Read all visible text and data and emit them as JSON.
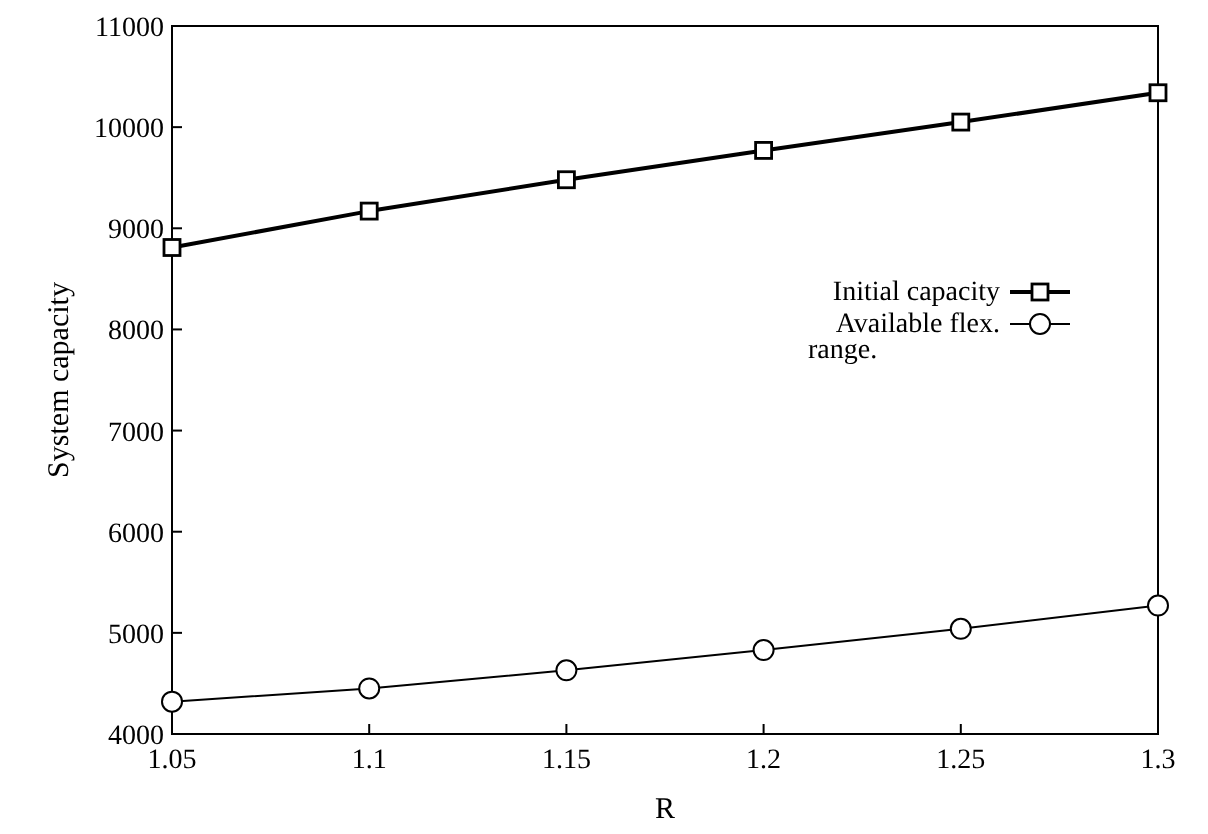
{
  "chart_data": {
    "type": "line",
    "xlabel": "R",
    "ylabel": "System capacity",
    "x": [
      1.05,
      1.1,
      1.15,
      1.2,
      1.25,
      1.3
    ],
    "xlim": [
      1.05,
      1.3
    ],
    "xticks": [
      1.05,
      1.1,
      1.15,
      1.2,
      1.25,
      1.3
    ],
    "ylim": [
      4000,
      11000
    ],
    "yticks": [
      4000,
      5000,
      6000,
      7000,
      8000,
      9000,
      10000,
      11000
    ],
    "grid": false,
    "legend": "right",
    "series": [
      {
        "name": "Initial capacity",
        "color": "#000000",
        "marker": "square",
        "values": [
          8810,
          9170,
          9480,
          9770,
          10050,
          10340
        ]
      },
      {
        "name": "Available flex. range.",
        "color": "#000000",
        "marker": "circle",
        "values": [
          4320,
          4450,
          4630,
          4830,
          5040,
          5270
        ]
      }
    ]
  }
}
